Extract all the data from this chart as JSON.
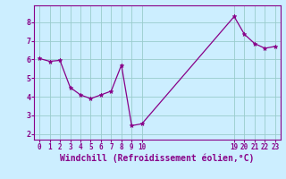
{
  "x": [
    0,
    1,
    2,
    3,
    4,
    5,
    6,
    7,
    8,
    9,
    10,
    19,
    20,
    21,
    22,
    23
  ],
  "y": [
    6.05,
    5.9,
    5.95,
    4.5,
    4.1,
    3.9,
    4.1,
    4.3,
    5.7,
    2.45,
    2.55,
    8.3,
    7.35,
    6.85,
    6.6,
    6.7
  ],
  "line_color": "#880088",
  "marker": "*",
  "marker_size": 3.5,
  "xlabel": "Windchill (Refroidissement éolien,°C)",
  "xlabel_fontsize": 7,
  "bg_color": "#cceeff",
  "grid_color": "#99cccc",
  "tick_color": "#880088",
  "label_color": "#880088",
  "xticks": [
    0,
    1,
    2,
    3,
    4,
    5,
    6,
    7,
    8,
    9,
    10,
    19,
    20,
    21,
    22,
    23
  ],
  "xtick_labels": [
    "0",
    "1",
    "2",
    "3",
    "4",
    "5",
    "6",
    "7",
    "8",
    "9",
    "10",
    "19",
    "20",
    "21",
    "22",
    "23"
  ],
  "yticks": [
    2,
    3,
    4,
    5,
    6,
    7,
    8
  ],
  "ylim": [
    1.7,
    8.9
  ],
  "xlim": [
    -0.5,
    23.5
  ]
}
